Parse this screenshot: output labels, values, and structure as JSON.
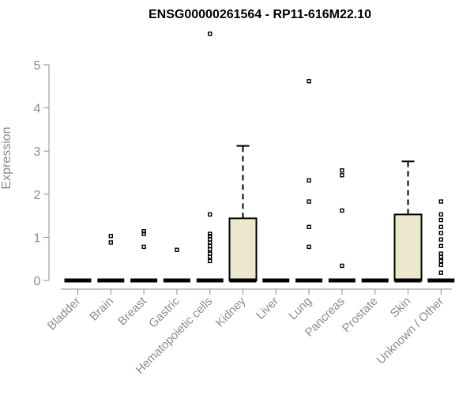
{
  "chart_data": {
    "type": "boxplot",
    "title": "ENSG00000261564 - RP11-616M22.10",
    "xlabel": "",
    "ylabel": "Expression",
    "ylim": [
      0,
      5.8
    ],
    "yticks": [
      0,
      1,
      2,
      3,
      4,
      5
    ],
    "grid": false,
    "legend": "none",
    "box_fill": "#ece8cd",
    "box_stroke": "#000000",
    "axis_color": "#8c8c8c",
    "categories": [
      "Bladder",
      "Brain",
      "Breast",
      "Gastric",
      "Hematopoietic cells",
      "Kidney",
      "Liver",
      "Lung",
      "Pancreas",
      "Prostate",
      "Skin",
      "Unknown / Other"
    ],
    "boxes": [
      {
        "category": "Bladder",
        "q1": 0,
        "median": 0,
        "q3": 0,
        "whisker_low": 0,
        "whisker_high": 0,
        "outliers": []
      },
      {
        "category": "Brain",
        "q1": 0,
        "median": 0,
        "q3": 0,
        "whisker_low": 0,
        "whisker_high": 0,
        "outliers": [
          0.88,
          1.03
        ]
      },
      {
        "category": "Breast",
        "q1": 0,
        "median": 0,
        "q3": 0,
        "whisker_low": 0,
        "whisker_high": 0,
        "outliers": [
          0.78,
          1.08,
          1.14
        ]
      },
      {
        "category": "Gastric",
        "q1": 0,
        "median": 0,
        "q3": 0,
        "whisker_low": 0,
        "whisker_high": 0,
        "outliers": [
          0.71
        ]
      },
      {
        "category": "Hematopoietic cells",
        "q1": 0,
        "median": 0,
        "q3": 0,
        "whisker_low": 0,
        "whisker_high": 0,
        "outliers": [
          0.45,
          0.55,
          0.62,
          0.72,
          0.8,
          0.88,
          0.95,
          1.03,
          1.08,
          1.53,
          5.72
        ]
      },
      {
        "category": "Kidney",
        "q1": 0,
        "median": 0,
        "q3": 1.44,
        "whisker_low": 0,
        "whisker_high": 3.12,
        "outliers": []
      },
      {
        "category": "Liver",
        "q1": 0,
        "median": 0,
        "q3": 0,
        "whisker_low": 0,
        "whisker_high": 0,
        "outliers": []
      },
      {
        "category": "Lung",
        "q1": 0,
        "median": 0,
        "q3": 0,
        "whisker_low": 0,
        "whisker_high": 0,
        "outliers": [
          0.78,
          1.24,
          1.83,
          2.32,
          4.62
        ]
      },
      {
        "category": "Pancreas",
        "q1": 0,
        "median": 0,
        "q3": 0,
        "whisker_low": 0,
        "whisker_high": 0,
        "outliers": [
          0.34,
          1.62,
          2.44,
          2.55
        ]
      },
      {
        "category": "Prostate",
        "q1": 0,
        "median": 0,
        "q3": 0,
        "whisker_low": 0,
        "whisker_high": 0,
        "outliers": []
      },
      {
        "category": "Skin",
        "q1": 0,
        "median": 0,
        "q3": 1.53,
        "whisker_low": 0,
        "whisker_high": 2.76,
        "outliers": []
      },
      {
        "category": "Unknown / Other",
        "q1": 0,
        "median": 0,
        "q3": 0,
        "whisker_low": 0,
        "whisker_high": 0,
        "outliers": [
          0.18,
          0.36,
          0.45,
          0.55,
          0.62,
          0.8,
          0.95,
          1.1,
          1.24,
          1.4,
          1.53,
          1.83
        ]
      }
    ]
  }
}
